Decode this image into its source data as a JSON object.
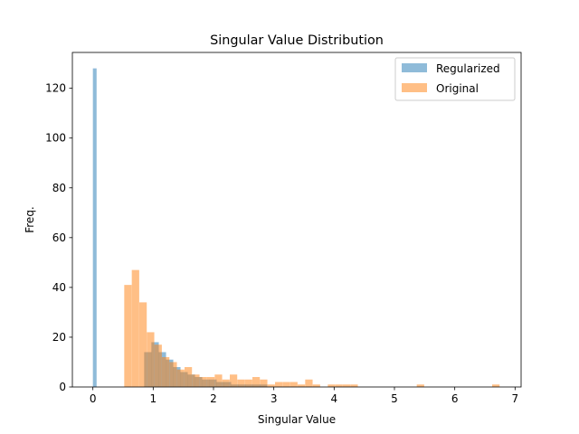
{
  "chart_data": {
    "type": "bar",
    "title": "Singular Value Distribution",
    "xlabel": "Singular Value",
    "ylabel": "Freq.",
    "xlim": [
      -0.34,
      7.1
    ],
    "ylim": [
      0,
      134.4
    ],
    "xticks": [
      0,
      1,
      2,
      3,
      4,
      5,
      6,
      7
    ],
    "yticks": [
      0,
      20,
      40,
      60,
      80,
      100,
      120
    ],
    "grid": false,
    "legend_position": "upper-right",
    "bin_width": 0.1232,
    "series": [
      {
        "name": "Regularized",
        "color": "#1f77b4",
        "alpha": 0.5,
        "bins": [
          {
            "x0": 0.0,
            "count": 128
          },
          {
            "x0": 0.0616,
            "count": 0
          },
          {
            "x0": 0.1232,
            "count": 0
          },
          {
            "x0": 0.85,
            "count": 14
          },
          {
            "x0": 0.97,
            "count": 18
          },
          {
            "x0": 1.09,
            "count": 14
          },
          {
            "x0": 1.21,
            "count": 11
          },
          {
            "x0": 1.33,
            "count": 8
          },
          {
            "x0": 1.45,
            "count": 6
          },
          {
            "x0": 1.57,
            "count": 5
          },
          {
            "x0": 1.69,
            "count": 4
          },
          {
            "x0": 1.81,
            "count": 3
          },
          {
            "x0": 1.93,
            "count": 3
          },
          {
            "x0": 2.05,
            "count": 2
          },
          {
            "x0": 2.17,
            "count": 2
          },
          {
            "x0": 2.29,
            "count": 1
          },
          {
            "x0": 2.41,
            "count": 1
          },
          {
            "x0": 2.53,
            "count": 1
          },
          {
            "x0": 2.65,
            "count": 1
          },
          {
            "x0": 2.77,
            "count": 1
          }
        ]
      },
      {
        "name": "Original",
        "color": "#ff7f0e",
        "alpha": 0.5,
        "bins": [
          {
            "x0": 0.52,
            "count": 41
          },
          {
            "x0": 0.645,
            "count": 47
          },
          {
            "x0": 0.77,
            "count": 34
          },
          {
            "x0": 0.895,
            "count": 22
          },
          {
            "x0": 1.02,
            "count": 17
          },
          {
            "x0": 1.145,
            "count": 12
          },
          {
            "x0": 1.27,
            "count": 10
          },
          {
            "x0": 1.395,
            "count": 7
          },
          {
            "x0": 1.52,
            "count": 8
          },
          {
            "x0": 1.645,
            "count": 5
          },
          {
            "x0": 1.77,
            "count": 4
          },
          {
            "x0": 1.895,
            "count": 4
          },
          {
            "x0": 2.02,
            "count": 5
          },
          {
            "x0": 2.145,
            "count": 3
          },
          {
            "x0": 2.27,
            "count": 5
          },
          {
            "x0": 2.395,
            "count": 3
          },
          {
            "x0": 2.52,
            "count": 3
          },
          {
            "x0": 2.645,
            "count": 4
          },
          {
            "x0": 2.77,
            "count": 3
          },
          {
            "x0": 2.895,
            "count": 1
          },
          {
            "x0": 3.02,
            "count": 2
          },
          {
            "x0": 3.145,
            "count": 2
          },
          {
            "x0": 3.27,
            "count": 2
          },
          {
            "x0": 3.395,
            "count": 1
          },
          {
            "x0": 3.52,
            "count": 3
          },
          {
            "x0": 3.645,
            "count": 1
          },
          {
            "x0": 3.895,
            "count": 1
          },
          {
            "x0": 4.02,
            "count": 1
          },
          {
            "x0": 4.145,
            "count": 1
          },
          {
            "x0": 4.27,
            "count": 1
          },
          {
            "x0": 5.37,
            "count": 1
          },
          {
            "x0": 6.62,
            "count": 1
          }
        ]
      }
    ]
  }
}
